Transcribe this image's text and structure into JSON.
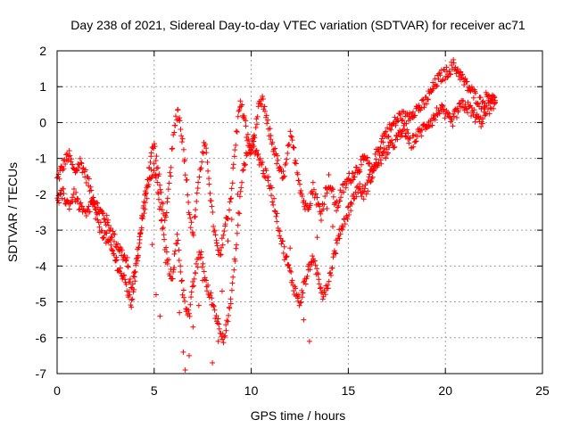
{
  "chart_data": {
    "type": "scatter",
    "title": "Day 238 of 2021, Sidereal Day-to-day VTEC variation (SDTVAR) for receiver ac71",
    "xlabel": "GPS time / hours",
    "ylabel": "SDTVAR / TECUs",
    "xlim": [
      0,
      25
    ],
    "ylim": [
      -7,
      2
    ],
    "xticks": [
      0,
      5,
      10,
      15,
      20,
      25
    ],
    "yticks": [
      -7,
      -6,
      -5,
      -4,
      -3,
      -2,
      -1,
      0,
      1,
      2
    ],
    "grid": true,
    "marker": "plus",
    "series": [
      {
        "name": "SDTVAR",
        "color": "#ff0000",
        "trace_a": {
          "x": [
            0.0,
            0.3,
            0.6,
            0.9,
            1.2,
            1.5,
            1.8,
            2.1,
            2.4,
            2.7,
            3.0,
            3.3,
            3.6,
            3.8,
            4.0,
            4.2,
            4.4,
            4.6,
            4.8,
            5.0,
            5.2,
            5.4,
            5.6,
            5.8,
            6.0,
            6.2,
            6.4,
            6.6,
            6.8,
            7.0,
            7.2,
            7.4,
            7.6,
            7.8,
            8.0,
            8.2,
            8.4,
            8.6,
            8.8,
            9.0,
            9.2,
            9.4,
            9.6,
            9.8,
            10.0,
            10.2,
            10.4,
            10.6,
            10.8,
            11.0,
            11.2,
            11.4,
            11.6,
            11.8,
            12.0,
            12.2,
            12.4,
            12.6,
            12.8,
            13.0,
            13.2,
            13.4,
            13.6,
            13.8,
            14.0,
            14.2,
            14.4,
            14.6,
            14.8,
            15.0,
            15.3,
            15.6,
            15.9,
            16.2,
            16.5,
            16.8,
            17.1,
            17.4,
            17.7,
            18.0,
            18.3,
            18.6,
            18.9,
            19.2,
            19.5,
            19.8,
            20.1,
            20.4,
            20.7,
            21.0,
            21.3,
            21.6,
            21.9,
            22.2,
            22.5,
            22.6
          ],
          "y": [
            -1.6,
            -1.2,
            -0.9,
            -1.4,
            -1.1,
            -1.5,
            -2.0,
            -2.4,
            -2.6,
            -2.9,
            -3.3,
            -3.6,
            -3.9,
            -4.6,
            -4.2,
            -3.4,
            -2.6,
            -1.8,
            -1.0,
            -0.6,
            -1.4,
            -2.2,
            -2.8,
            -1.6,
            -0.4,
            0.4,
            -0.2,
            -1.2,
            -2.4,
            -3.2,
            -2.0,
            -1.2,
            -0.6,
            -1.4,
            -2.6,
            -3.4,
            -3.8,
            -3.0,
            -2.6,
            -1.8,
            -0.6,
            0.6,
            0.2,
            -0.4,
            -0.8,
            -0.2,
            0.4,
            0.6,
            0.0,
            -0.4,
            -0.8,
            -1.2,
            -1.6,
            -1.2,
            -0.4,
            -0.8,
            -1.4,
            -2.0,
            -2.4,
            -2.2,
            -1.8,
            -2.2,
            -2.6,
            -2.0,
            -1.6,
            -2.0,
            -2.4,
            -2.0,
            -1.8,
            -1.6,
            -1.4,
            -1.2,
            -1.0,
            -1.4,
            -0.8,
            -0.4,
            -0.2,
            0.0,
            0.2,
            0.1,
            0.3,
            0.4,
            0.5,
            0.8,
            1.1,
            1.3,
            1.4,
            1.6,
            1.4,
            1.1,
            0.9,
            0.7,
            0.5,
            0.8,
            0.6,
            0.7
          ]
        },
        "trace_b": {
          "x": [
            0.0,
            0.3,
            0.6,
            0.9,
            1.2,
            1.5,
            1.8,
            2.1,
            2.4,
            2.7,
            3.0,
            3.3,
            3.6,
            3.8,
            4.0,
            4.3,
            4.6,
            5.0,
            5.3,
            5.6,
            5.9,
            6.2,
            6.5,
            6.8,
            7.1,
            7.4,
            7.7,
            8.0,
            8.3,
            8.6,
            8.9,
            9.2,
            9.5,
            9.8,
            10.1,
            10.4,
            10.7,
            11.0,
            11.3,
            11.6,
            11.9,
            12.2,
            12.5,
            12.8,
            13.1,
            13.4,
            13.7,
            14.0,
            14.3,
            14.6,
            14.9,
            15.2,
            15.5,
            15.8,
            16.1,
            16.4,
            16.7,
            17.0,
            17.3,
            17.6,
            17.9,
            18.2,
            18.5,
            18.8,
            19.1,
            19.4,
            19.7,
            20.0,
            20.3,
            20.6,
            20.9,
            21.2,
            21.5,
            21.8,
            22.1,
            22.4,
            22.6
          ],
          "y": [
            -2.2,
            -2.0,
            -2.3,
            -2.0,
            -2.4,
            -2.6,
            -2.2,
            -2.8,
            -3.1,
            -3.4,
            -3.8,
            -4.2,
            -4.6,
            -5.1,
            -4.4,
            -3.0,
            -2.0,
            -1.2,
            -2.4,
            -3.6,
            -4.4,
            -3.2,
            -4.8,
            -5.4,
            -4.2,
            -3.6,
            -4.6,
            -5.0,
            -5.6,
            -6.0,
            -5.2,
            -3.6,
            -1.6,
            -0.8,
            -0.6,
            -1.0,
            -1.4,
            -1.8,
            -2.6,
            -3.4,
            -4.0,
            -4.6,
            -5.0,
            -4.4,
            -3.8,
            -4.2,
            -4.8,
            -4.4,
            -3.6,
            -3.0,
            -2.6,
            -2.2,
            -1.8,
            -2.0,
            -1.6,
            -1.2,
            -1.0,
            -0.8,
            -0.6,
            -0.4,
            -0.2,
            -0.6,
            -0.4,
            -0.2,
            0.0,
            0.1,
            0.4,
            0.2,
            0.0,
            0.3,
            0.5,
            0.4,
            0.2,
            0.0,
            0.3,
            0.5,
            0.6
          ]
        },
        "outliers": {
          "x": [
            4.9,
            5.1,
            5.3,
            5.6,
            6.0,
            6.3,
            6.5,
            6.6,
            6.8,
            7.0,
            7.3,
            7.5,
            8.0,
            8.3,
            8.5,
            8.8,
            9.0,
            9.3,
            12.0,
            12.4,
            12.7,
            13.0,
            13.4,
            13.9,
            14.2
          ],
          "y": [
            -3.4,
            -4.8,
            -5.4,
            -3.9,
            -4.1,
            -5.3,
            -6.4,
            -6.9,
            -6.5,
            -5.7,
            -5.1,
            -4.4,
            -6.7,
            -6.1,
            -4.7,
            -3.3,
            -2.7,
            -2.0,
            -3.5,
            -4.9,
            -5.5,
            -6.1,
            -3.2,
            -2.4,
            -2.9
          ]
        }
      }
    ]
  }
}
